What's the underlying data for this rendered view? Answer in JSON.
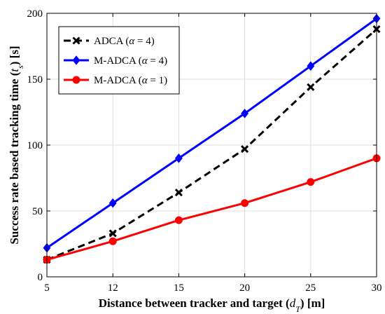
{
  "chart_data": {
    "type": "line",
    "categories": [
      "5",
      "12",
      "15",
      "20",
      "25",
      "30"
    ],
    "xlabel": "Distance between tracker and target (d_T) [m]",
    "xlabel_parts": {
      "before": "Distance between tracker and target (",
      "var": "d",
      "sub": "T",
      "after": ") [m]"
    },
    "ylabel": "Success rate based tracking time (t_s) [s]",
    "ylabel_parts": {
      "before": "Success rate based tracking time (",
      "var": "t",
      "sub": "s",
      "after": ") [s]"
    },
    "ylim": [
      0,
      200
    ],
    "yticks": [
      0,
      50,
      100,
      150,
      200
    ],
    "grid": true,
    "legend_position": "top-left",
    "series": [
      {
        "name": "ADCA (α = 4)",
        "legend_parts": {
          "label": "ADCA (",
          "alpha": "4"
        },
        "color": "#000000",
        "marker": "x",
        "dash": "dashed",
        "values": [
          13,
          33,
          64,
          97,
          144,
          188
        ]
      },
      {
        "name": "M-ADCA (α = 4)",
        "legend_parts": {
          "label": "M-ADCA (",
          "alpha": "4"
        },
        "color": "#0000ff",
        "marker": "diamond",
        "dash": "solid",
        "values": [
          22,
          56,
          90,
          124,
          160,
          196
        ]
      },
      {
        "name": "M-ADCA (α = 1)",
        "legend_parts": {
          "label": "M-ADCA (",
          "alpha": "1"
        },
        "color": "#ff0000",
        "marker": "circle",
        "dash": "solid",
        "values": [
          13,
          27,
          43,
          56,
          72,
          90
        ]
      }
    ]
  }
}
